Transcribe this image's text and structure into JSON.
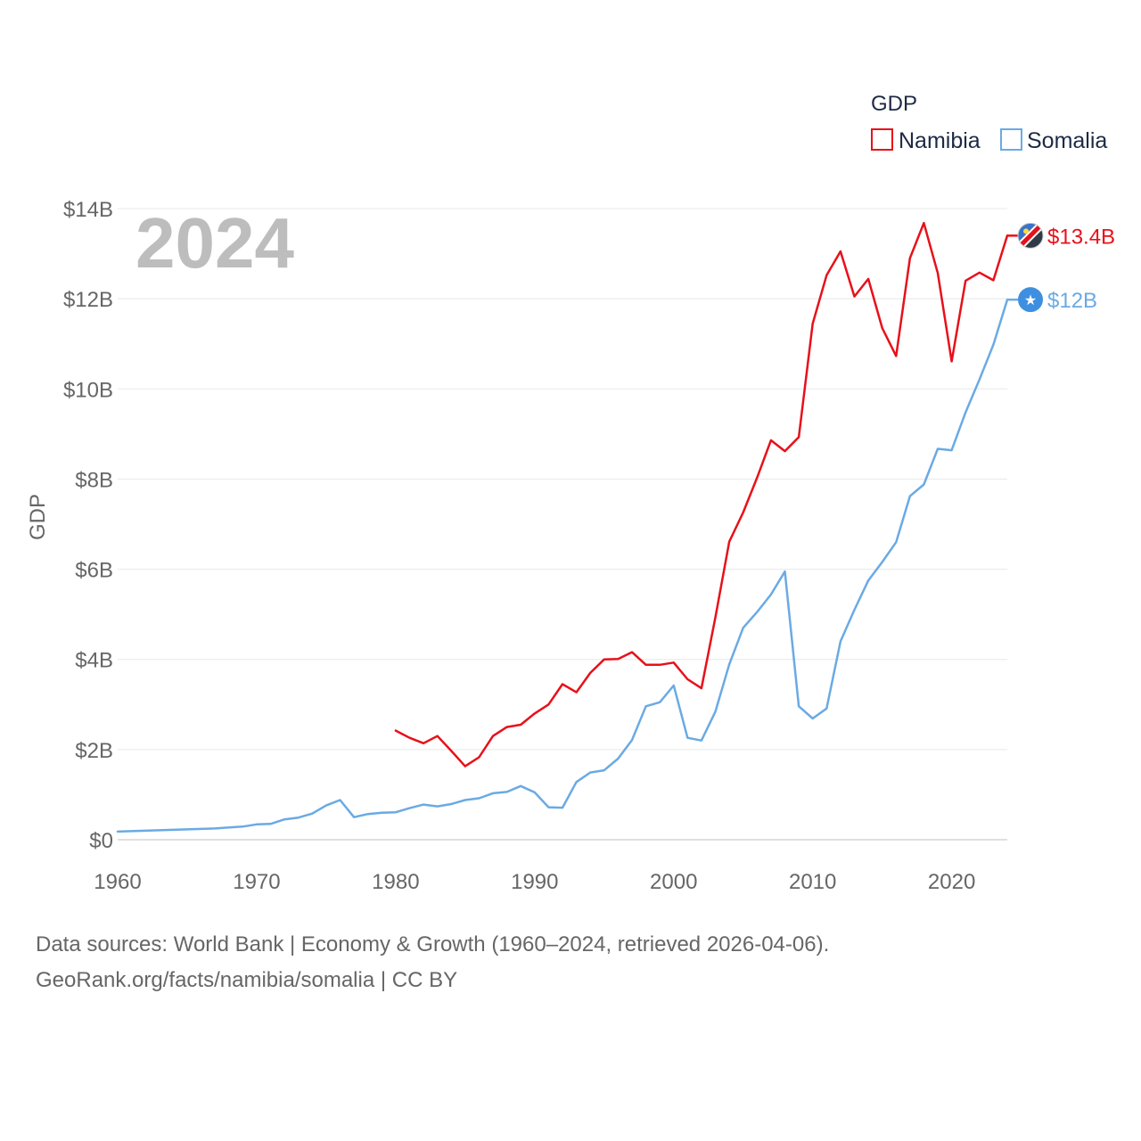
{
  "chart_data": {
    "type": "line",
    "year_stamp": "2024",
    "ylabel": "GDP",
    "xlabel": "",
    "xlim": [
      1960,
      2024
    ],
    "ylim": [
      0,
      14
    ],
    "x_ticks": [
      1960,
      1970,
      1980,
      1990,
      2000,
      2010,
      2020
    ],
    "x_tick_labels": [
      "1960",
      "1970",
      "1980",
      "1990",
      "2000",
      "2010",
      "2020"
    ],
    "y_ticks": [
      0,
      2,
      4,
      6,
      8,
      10,
      12,
      14
    ],
    "y_tick_labels": [
      "$0",
      "$2B",
      "$4B",
      "$6B",
      "$8B",
      "$10B",
      "$12B",
      "$14B"
    ],
    "legend": {
      "title": "GDP",
      "position": "top-right"
    },
    "series": [
      {
        "name": "Namibia",
        "color": "#e8101a",
        "end_label": "$13.4B",
        "flag_icon": "namibia-flag-icon",
        "x": [
          1980,
          1981,
          1982,
          1983,
          1984,
          1985,
          1986,
          1987,
          1988,
          1989,
          1990,
          1991,
          1992,
          1993,
          1994,
          1995,
          1996,
          1997,
          1998,
          1999,
          2000,
          2001,
          2002,
          2003,
          2004,
          2005,
          2006,
          2007,
          2008,
          2009,
          2010,
          2011,
          2012,
          2013,
          2014,
          2015,
          2016,
          2017,
          2018,
          2019,
          2020,
          2021,
          2022,
          2023,
          2024
        ],
        "values": [
          2.42,
          2.26,
          2.14,
          2.3,
          1.97,
          1.63,
          1.83,
          2.3,
          2.5,
          2.55,
          2.8,
          3.0,
          3.45,
          3.27,
          3.7,
          4.0,
          4.01,
          4.16,
          3.88,
          3.88,
          3.93,
          3.56,
          3.36,
          4.93,
          6.61,
          7.26,
          8.03,
          8.86,
          8.62,
          8.93,
          11.45,
          12.52,
          13.05,
          12.05,
          12.44,
          11.35,
          10.73,
          12.9,
          13.68,
          12.57,
          10.61,
          12.4,
          12.58,
          12.41,
          13.4
        ]
      },
      {
        "name": "Somalia",
        "color": "#6aaae4",
        "end_label": "$12B",
        "flag_icon": "somalia-flag-icon",
        "x": [
          1960,
          1961,
          1962,
          1963,
          1964,
          1965,
          1966,
          1967,
          1968,
          1969,
          1970,
          1971,
          1972,
          1973,
          1974,
          1975,
          1976,
          1977,
          1978,
          1979,
          1980,
          1981,
          1982,
          1983,
          1984,
          1985,
          1986,
          1987,
          1988,
          1989,
          1990,
          1991,
          1992,
          1993,
          1994,
          1995,
          1996,
          1997,
          1998,
          1999,
          2000,
          2001,
          2002,
          2003,
          2004,
          2005,
          2006,
          2007,
          2008,
          2009,
          2010,
          2011,
          2012,
          2013,
          2014,
          2015,
          2016,
          2017,
          2018,
          2019,
          2020,
          2021,
          2022,
          2023,
          2024
        ],
        "values": [
          0.18,
          0.19,
          0.2,
          0.21,
          0.22,
          0.23,
          0.24,
          0.25,
          0.27,
          0.29,
          0.34,
          0.35,
          0.45,
          0.49,
          0.58,
          0.76,
          0.88,
          0.5,
          0.57,
          0.6,
          0.61,
          0.7,
          0.78,
          0.74,
          0.79,
          0.88,
          0.92,
          1.03,
          1.06,
          1.19,
          1.05,
          0.72,
          0.71,
          1.28,
          1.49,
          1.54,
          1.8,
          2.21,
          2.96,
          3.05,
          3.42,
          2.26,
          2.2,
          2.84,
          3.89,
          4.7,
          5.05,
          5.44,
          5.95,
          2.96,
          2.69,
          2.91,
          4.4,
          5.1,
          5.75,
          6.16,
          6.6,
          7.62,
          7.88,
          8.67,
          8.64,
          9.48,
          10.21,
          10.98,
          11.98
        ]
      }
    ]
  },
  "footer": {
    "source_line": "Data sources: World Bank | Economy & Growth (1960–2024, retrieved 2026-04-06).",
    "credit_line": "GeoRank.org/facts/namibia/somalia | CC BY"
  }
}
